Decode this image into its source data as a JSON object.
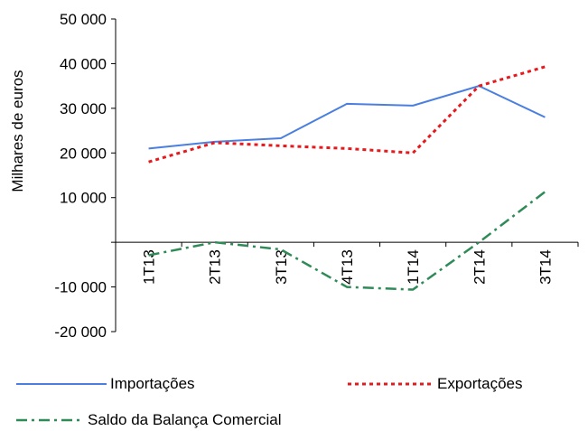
{
  "chart_data": {
    "type": "line",
    "ylabel": "Milhares de euros",
    "categories": [
      "1T13",
      "2T13",
      "3T13",
      "4T13",
      "1T14",
      "2T14",
      "3T14"
    ],
    "ylim": [
      -20000,
      50000
    ],
    "yticks": [
      -20000,
      -10000,
      10000,
      20000,
      30000,
      40000,
      50000
    ],
    "ytick_labels": [
      "-20 000",
      "-10 000",
      "10 000",
      "20 000",
      "30 000",
      "40 000",
      "50 000"
    ],
    "grid": false,
    "legend_position": "bottom",
    "series": [
      {
        "name": "Importações",
        "values": [
          21000,
          22500,
          23300,
          31000,
          30600,
          35000,
          28000
        ],
        "color": "#4a7fe0",
        "style": "solid"
      },
      {
        "name": "Exportações",
        "values": [
          18000,
          22300,
          21600,
          21000,
          20000,
          35000,
          39300
        ],
        "color": "#e8191c",
        "style": "dotted"
      },
      {
        "name": "Saldo da Balança Comercial",
        "values": [
          -2900,
          0,
          -1600,
          -10000,
          -10600,
          0,
          11300
        ],
        "color": "#2e8b57",
        "style": "dashdot"
      }
    ]
  }
}
